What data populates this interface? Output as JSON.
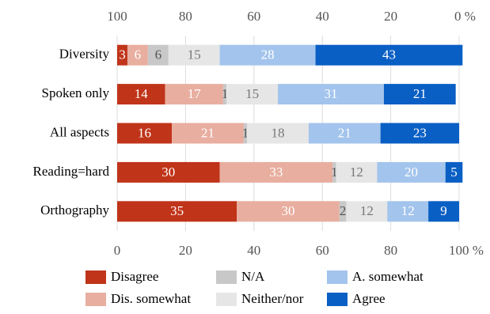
{
  "chart_data": {
    "type": "stacked_barh",
    "categories": [
      "Diversity",
      "Spoken only",
      "All aspects",
      "Reading=hard",
      "Orthography"
    ],
    "series": [
      {
        "name": "Disagree",
        "color": "#c0341a",
        "label_color": "#ffffff",
        "values": [
          3,
          14,
          16,
          30,
          35
        ]
      },
      {
        "name": "Dis. somewhat",
        "color": "#e8aea0",
        "label_color": "#ffffff",
        "values": [
          6,
          17,
          21,
          33,
          30
        ]
      },
      {
        "name": "N/A",
        "color": "#c8c8c8",
        "label_color": "#555555",
        "values": [
          6,
          1,
          1,
          1,
          2
        ]
      },
      {
        "name": "Neither/nor",
        "color": "#e6e6e6",
        "label_color": "#777777",
        "values": [
          15,
          15,
          18,
          12,
          12
        ]
      },
      {
        "name": "A. somewhat",
        "color": "#a3c4ec",
        "label_color": "#ffffff",
        "values": [
          28,
          31,
          21,
          20,
          12
        ]
      },
      {
        "name": "Agree",
        "color": "#0a5fc4",
        "label_color": "#ffffff",
        "values": [
          43,
          21,
          23,
          5,
          9
        ]
      }
    ],
    "xlim": [
      0,
      100
    ],
    "xticks": [
      0,
      20,
      40,
      60,
      80,
      {
        "value": 100,
        "label": "100 %"
      }
    ],
    "x2lim": [
      100,
      0
    ],
    "x2ticks": [
      100,
      80,
      60,
      40,
      20,
      {
        "value": 0,
        "label": "0 %"
      }
    ],
    "grid": true
  }
}
